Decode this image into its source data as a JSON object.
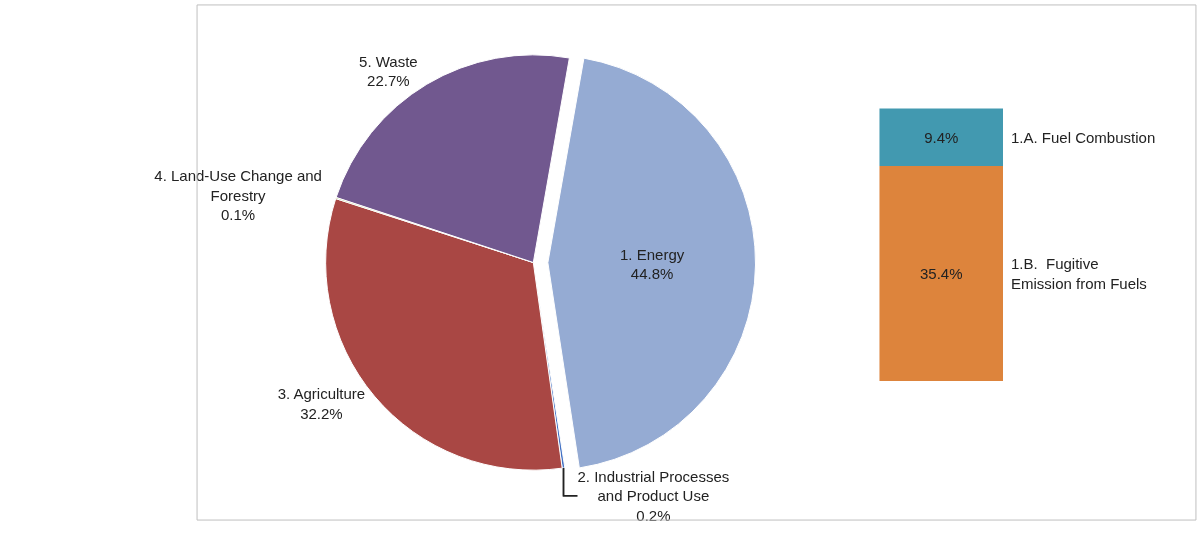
{
  "chart_data": [
    {
      "type": "pie",
      "categories": [
        "1. Energy",
        "2. Industrial Processes and Product Use",
        "3. Agriculture",
        "4. Land-Use Change and Forestry",
        "5. Waste"
      ],
      "values": [
        44.8,
        0.2,
        32.2,
        0.1,
        22.7
      ],
      "value_labels": [
        "44.8%",
        "0.2%",
        "32.2%",
        "0.1%",
        "22.7%"
      ],
      "colors": [
        "#95abd3",
        "#4472c4",
        "#a94744",
        "#9bbb59",
        "#71588f"
      ]
    },
    {
      "type": "bar",
      "stacked": true,
      "categories": [
        null
      ],
      "tick_labels": false,
      "series": [
        {
          "name": "1.B.  Fugitive Emission from Fuels",
          "color": "#dd843c",
          "values": [
            35.4
          ],
          "value_labels": [
            "35.4%"
          ]
        },
        {
          "name": "1.A. Fuel Combustion",
          "color": "#4299b0",
          "values": [
            9.4
          ],
          "value_labels": [
            "9.4%"
          ]
        }
      ]
    }
  ]
}
